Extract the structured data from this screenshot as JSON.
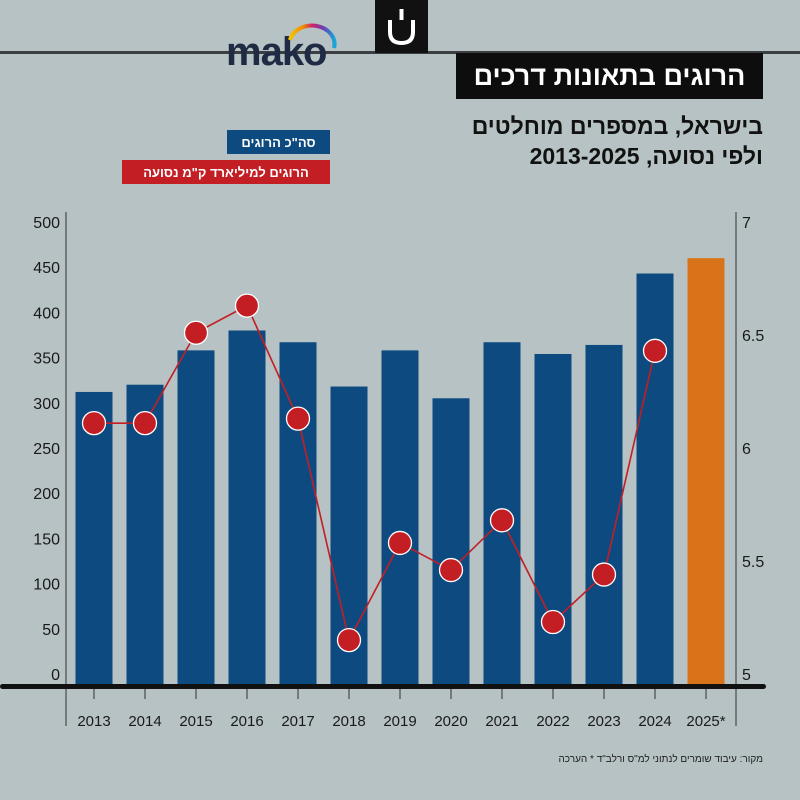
{
  "header": {
    "brand": "mako",
    "title": "הרוגים בתאונות דרכים",
    "subtitle_line1": "בישראל, במספרים מוחלטים",
    "subtitle_line2": "ולפי נסועה, 2013-2025"
  },
  "legend": {
    "total_label": "סה\"כ הרוגים",
    "rate_label": "הרוגים למיליארד ק\"מ נסועה"
  },
  "footnote": "מקור: עיבוד שומרים לנתוני למ\"ס ורלב\"ד  * הערכה",
  "colors": {
    "bar": "#0d4a80",
    "bar_estimate": "#d97319",
    "line": "#c41e25",
    "background": "#b6c2c3"
  },
  "chart_data": {
    "type": "bar+line",
    "categories": [
      "2013",
      "2014",
      "2015",
      "2016",
      "2017",
      "2018",
      "2019",
      "2020",
      "2021",
      "2022",
      "2023",
      "2024",
      "2025*"
    ],
    "series": [
      {
        "name": "סה\"כ הרוגים",
        "axis": "left",
        "type": "bar",
        "values": [
          312,
          320,
          358,
          380,
          367,
          318,
          358,
          305,
          367,
          354,
          364,
          443,
          460
        ]
      },
      {
        "name": "הרוגים למיליארד ק\"מ נסועה",
        "axis": "right",
        "type": "line",
        "values": [
          6.11,
          6.11,
          6.51,
          6.63,
          6.13,
          5.15,
          5.58,
          5.46,
          5.68,
          5.23,
          5.44,
          6.43,
          null
        ]
      }
    ],
    "estimate_category": "2025*",
    "y_left": {
      "min": 0,
      "max": 500,
      "ticks": [
        0,
        50,
        100,
        150,
        200,
        250,
        300,
        350,
        400,
        450,
        500
      ]
    },
    "y_right": {
      "min": 5,
      "max": 7,
      "ticks": [
        "5",
        "5.5",
        "6",
        "6.5",
        "7"
      ]
    }
  }
}
